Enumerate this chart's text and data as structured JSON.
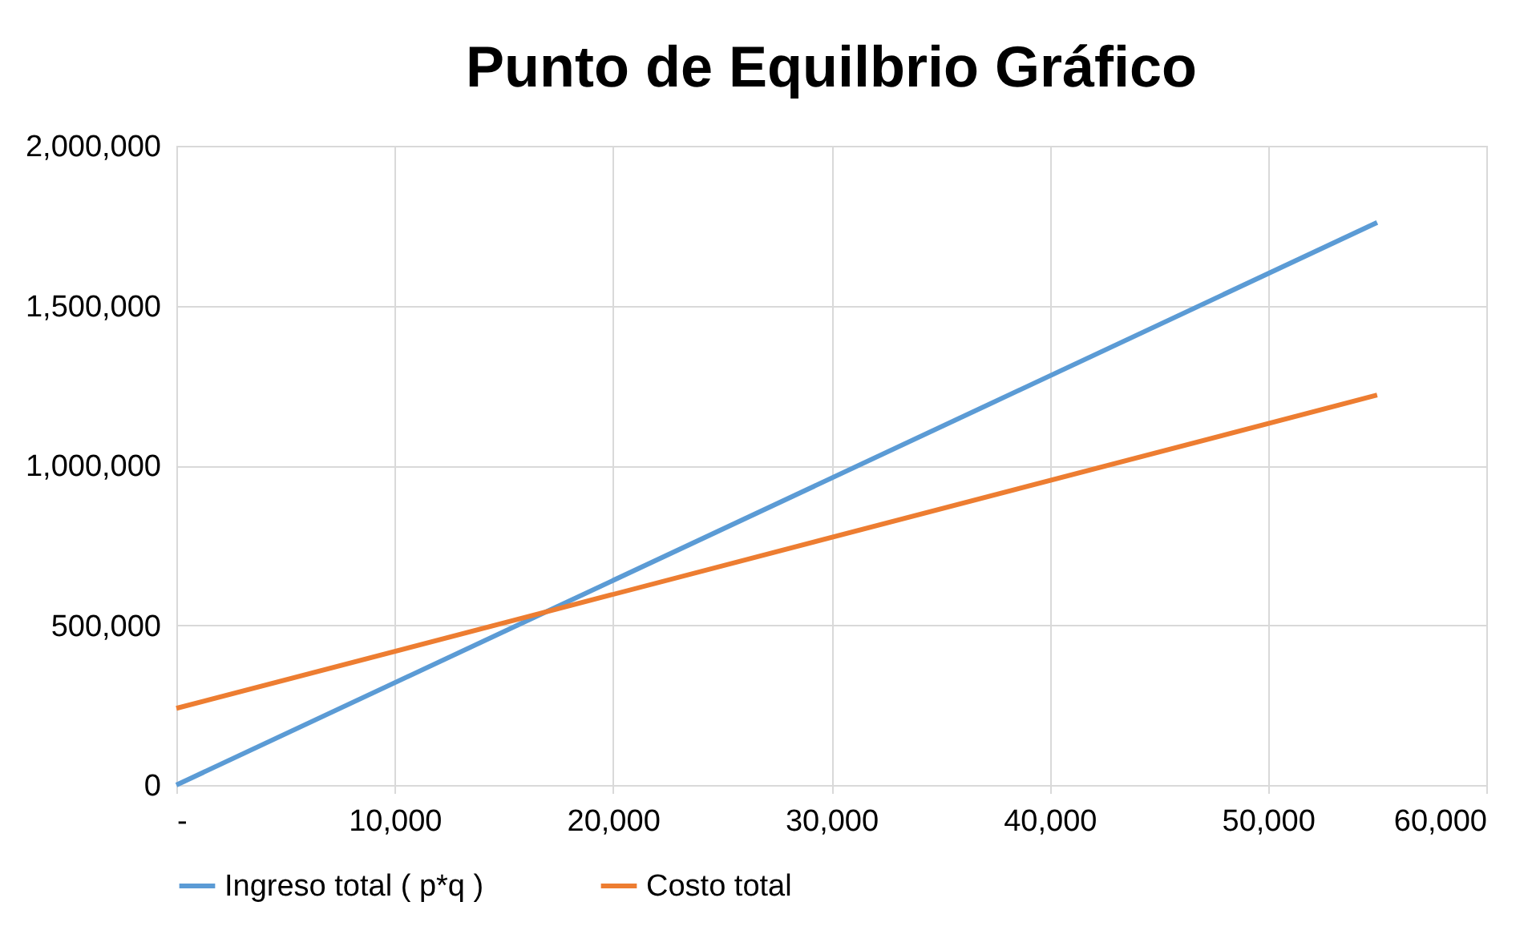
{
  "chart_data": {
    "type": "line",
    "title": "Punto de Equilbrio Gráfico",
    "x": [
      0,
      55000
    ],
    "series": [
      {
        "name": "Ingreso total      ( p*q )",
        "color": "#5b9bd5",
        "values": [
          0,
          1760000
        ]
      },
      {
        "name": "Costo total",
        "color": "#ed7d31",
        "values": [
          240000,
          1220000
        ]
      }
    ],
    "xlim": [
      0,
      60000
    ],
    "xticks": [
      {
        "value": 0,
        "label": "-"
      },
      {
        "value": 10000,
        "label": "10,000"
      },
      {
        "value": 20000,
        "label": "20,000"
      },
      {
        "value": 30000,
        "label": "30,000"
      },
      {
        "value": 40000,
        "label": "40,000"
      },
      {
        "value": 50000,
        "label": "50,000"
      },
      {
        "value": 60000,
        "label": "60,000"
      }
    ],
    "ylim": [
      0,
      2000000
    ],
    "yticks": [
      0,
      {
        "value": 500000,
        "label": "500,000"
      },
      {
        "value": 1000000,
        "label": "1,000,000"
      },
      {
        "value": 1500000,
        "label": "1,500,000"
      },
      {
        "value": 2000000,
        "label": "2,000,000"
      }
    ],
    "grid": true,
    "legend": "bottom",
    "marker": "none",
    "line_style": "solid"
  }
}
